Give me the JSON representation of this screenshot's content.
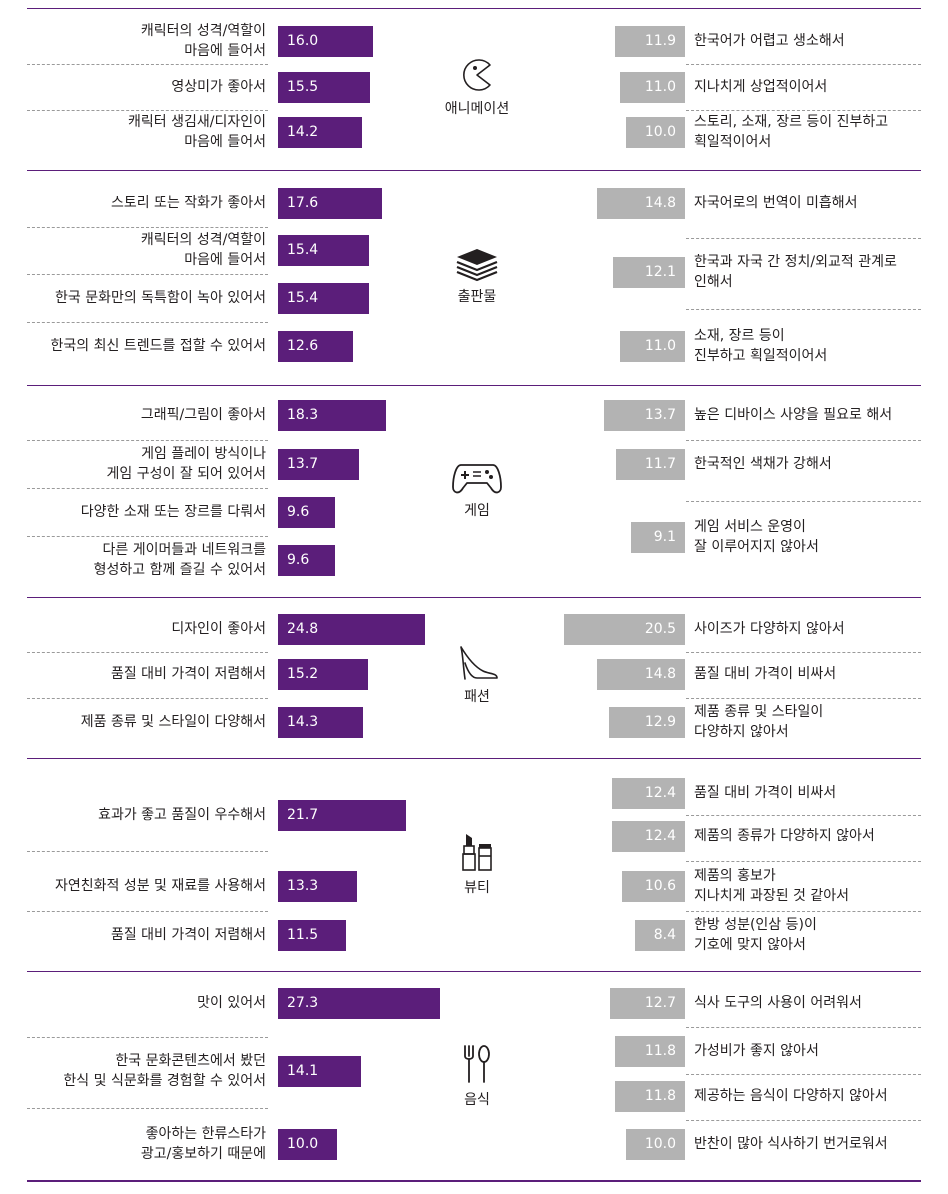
{
  "chart_data": {
    "type": "bar",
    "max_value": 30,
    "colors": {
      "positive": "#5b1e7a",
      "negative": "#b3b3b3",
      "separator": "#5b1e7a"
    },
    "groups": [
      {
        "name": "애니메이션",
        "icon": "pacman-icon",
        "positive": [
          {
            "label": "캐릭터의 성격/역할이\n마음에 들어서",
            "value": 16.0,
            "display": "16.0"
          },
          {
            "label": "영상미가 좋아서",
            "value": 15.5,
            "display": "15.5"
          },
          {
            "label": "캐릭터 생김새/디자인이\n마음에 들어서",
            "value": 14.2,
            "display": "14.2"
          }
        ],
        "negative": [
          {
            "label": "한국어가 어렵고 생소해서",
            "value": 11.9,
            "display": "11.9"
          },
          {
            "label": "지나치게 상업적이어서",
            "value": 11.0,
            "display": "11.0"
          },
          {
            "label": "스토리, 소재, 장르 등이 진부하고\n획일적이어서",
            "value": 10.0,
            "display": "10.0"
          }
        ]
      },
      {
        "name": "출판물",
        "icon": "book-stack-icon",
        "positive": [
          {
            "label": "스토리 또는 작화가 좋아서",
            "value": 17.6,
            "display": "17.6"
          },
          {
            "label": "캐릭터의 성격/역할이\n마음에 들어서",
            "value": 15.4,
            "display": "15.4"
          },
          {
            "label": "한국 문화만의 독특함이 녹아 있어서",
            "value": 15.4,
            "display": "15.4"
          },
          {
            "label": "한국의 최신 트렌드를 접할 수 있어서",
            "value": 12.6,
            "display": "12.6"
          }
        ],
        "negative": [
          {
            "label": "자국어로의 번역이 미흡해서",
            "value": 14.8,
            "display": "14.8"
          },
          {
            "label": "한국과 자국 간 정치/외교적 관계로\n인해서",
            "value": 12.1,
            "display": "12.1"
          },
          {
            "label": "소재, 장르 등이\n진부하고 획일적이어서",
            "value": 11.0,
            "display": "11.0"
          }
        ]
      },
      {
        "name": "게임",
        "icon": "gamepad-icon",
        "positive": [
          {
            "label": "그래픽/그림이 좋아서",
            "value": 18.3,
            "display": "18.3"
          },
          {
            "label": "게임 플레이 방식이나\n게임 구성이 잘 되어 있어서",
            "value": 13.7,
            "display": "13.7"
          },
          {
            "label": "다양한 소재 또는 장르를 다뤄서",
            "value": 9.6,
            "display": "9.6"
          },
          {
            "label": "다른 게이머들과 네트워크를\n형성하고 함께 즐길 수 있어서",
            "value": 9.6,
            "display": "9.6"
          }
        ],
        "negative": [
          {
            "label": "높은 디바이스 사양을 필요로 해서",
            "value": 13.7,
            "display": "13.7"
          },
          {
            "label": "한국적인 색채가 강해서",
            "value": 11.7,
            "display": "11.7"
          },
          {
            "label": "게임 서비스 운영이\n잘 이루어지지 않아서",
            "value": 9.1,
            "display": "9.1"
          }
        ]
      },
      {
        "name": "패션",
        "icon": "high-heel-icon",
        "positive": [
          {
            "label": "디자인이 좋아서",
            "value": 24.8,
            "display": "24.8"
          },
          {
            "label": "품질 대비 가격이 저렴해서",
            "value": 15.2,
            "display": "15.2"
          },
          {
            "label": "제품 종류 및 스타일이 다양해서",
            "value": 14.3,
            "display": "14.3"
          }
        ],
        "negative": [
          {
            "label": "사이즈가 다양하지 않아서",
            "value": 20.5,
            "display": "20.5"
          },
          {
            "label": "품질 대비 가격이 비싸서",
            "value": 14.8,
            "display": "14.8"
          },
          {
            "label": "제품 종류 및 스타일이\n다양하지 않아서",
            "value": 12.9,
            "display": "12.9"
          }
        ]
      },
      {
        "name": "뷰티",
        "icon": "cosmetics-icon",
        "positive": [
          {
            "label": "효과가 좋고 품질이 우수해서",
            "value": 21.7,
            "display": "21.7"
          },
          {
            "label": "자연친화적 성분 및 재료를 사용해서",
            "value": 13.3,
            "display": "13.3"
          },
          {
            "label": "품질 대비 가격이 저렴해서",
            "value": 11.5,
            "display": "11.5"
          }
        ],
        "negative": [
          {
            "label": "품질 대비 가격이 비싸서",
            "value": 12.4,
            "display": "12.4"
          },
          {
            "label": "제품의 종류가 다양하지 않아서",
            "value": 12.4,
            "display": "12.4"
          },
          {
            "label": "제품의 홍보가\n지나치게 과장된 것 같아서",
            "value": 10.6,
            "display": "10.6"
          },
          {
            "label": "한방 성분(인삼 등)이\n기호에 맞지 않아서",
            "value": 8.4,
            "display": "8.4"
          }
        ]
      },
      {
        "name": "음식",
        "icon": "fork-spoon-icon",
        "positive": [
          {
            "label": "맛이 있어서",
            "value": 27.3,
            "display": "27.3"
          },
          {
            "label": "한국 문화콘텐츠에서 봤던\n한식 및 식문화를 경험할 수 있어서",
            "value": 14.1,
            "display": "14.1"
          },
          {
            "label": "좋아하는 한류스타가\n광고/홍보하기 때문에",
            "value": 10.0,
            "display": "10.0"
          }
        ],
        "negative": [
          {
            "label": "식사 도구의 사용이 어려워서",
            "value": 12.7,
            "display": "12.7"
          },
          {
            "label": "가성비가 좋지 않아서",
            "value": 11.8,
            "display": "11.8"
          },
          {
            "label": "제공하는 음식이 다양하지 않아서",
            "value": 11.8,
            "display": "11.8"
          },
          {
            "label": "반찬이 많아 식사하기 번거로워서",
            "value": 10.0,
            "display": "10.0"
          }
        ]
      }
    ]
  }
}
